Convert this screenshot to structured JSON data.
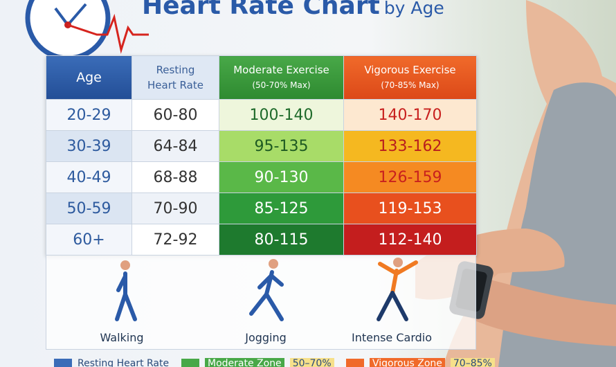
{
  "title": "Heart Rate Chart",
  "title_suffix": "by Age",
  "table": {
    "headers": [
      {
        "line1": "Age"
      },
      {
        "line1": "Resting",
        "line2": "Heart Rate"
      },
      {
        "line1": "Moderate Exercise",
        "line2": "(50-70% Max)"
      },
      {
        "line1": "Vigorous Exercise",
        "line2": "(70-85% Max)"
      }
    ],
    "rows": [
      [
        "20-29",
        "60-80",
        "100-140",
        "140-170"
      ],
      [
        "30-39",
        "64-84",
        "95-135",
        "133-162"
      ],
      [
        "40-49",
        "68-88",
        "90-130",
        "126-159"
      ],
      [
        "50-59",
        "70-90",
        "85-125",
        "119-153"
      ],
      [
        "60+",
        "72-92",
        "80-115",
        "112-140"
      ]
    ]
  },
  "activities": [
    "Walking",
    "Jogging",
    "Intense Cardio"
  ],
  "legend": [
    {
      "label": "Resting Heart Rate"
    },
    {
      "label": "Moderate Zone",
      "range": "50–70%"
    },
    {
      "label": "Vigorous Zone",
      "range": "70–85%"
    }
  ]
}
